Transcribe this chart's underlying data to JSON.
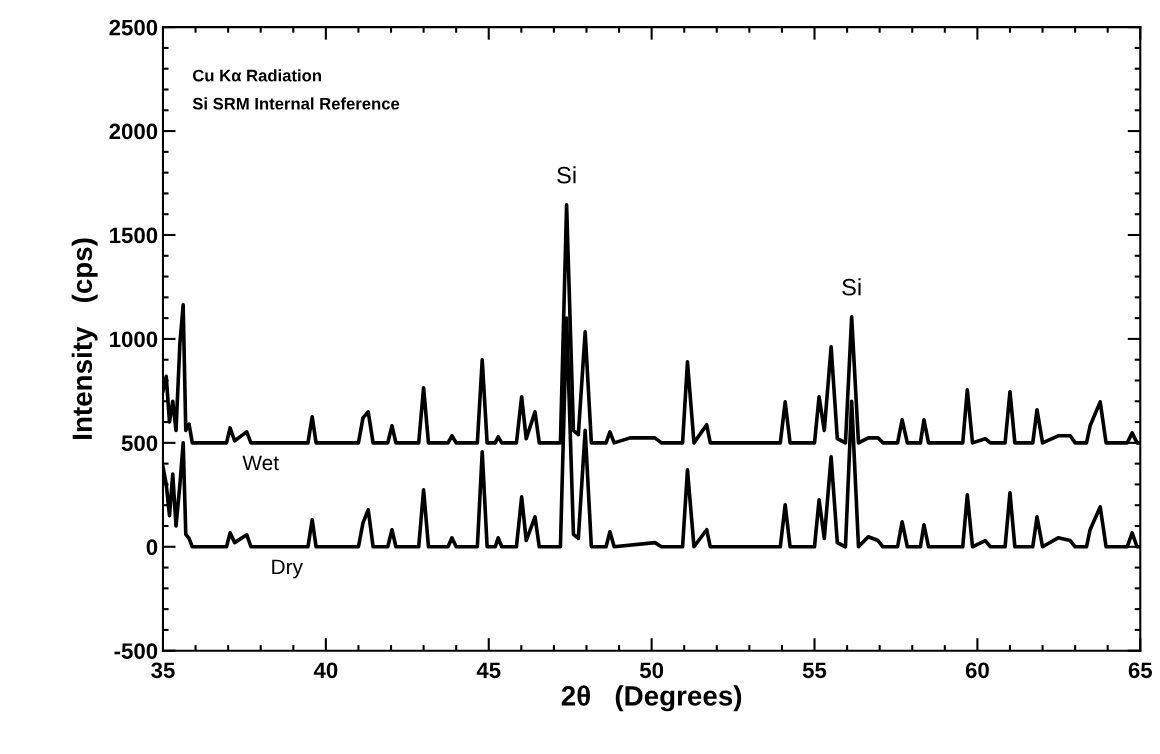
{
  "chart_data": {
    "type": "line",
    "xlabel": "2θ   (Degrees)",
    "ylabel": "Intensity   (cps)",
    "xlim": [
      35,
      65
    ],
    "xticks": [
      35,
      40,
      45,
      50,
      55,
      60,
      65
    ],
    "ylim": [
      -500,
      2500
    ],
    "yticks": [
      -500,
      0,
      500,
      1000,
      1500,
      2000,
      2500
    ],
    "grid": false,
    "legend": false,
    "marker": "none",
    "line_style": "solid",
    "annotations": [
      "Cu Kα Radiation",
      "Si SRM Internal Reference",
      {
        "text": "Si",
        "x": 47.39,
        "y": 1645
      },
      {
        "text": "Si",
        "x": 56.14,
        "y": 1106
      }
    ],
    "series": [
      {
        "name": "Wet",
        "color": "#000000",
        "x": [
          35.0,
          35.1,
          35.2,
          35.3,
          35.4,
          35.52,
          35.62,
          35.7,
          35.8,
          35.9,
          36.95,
          37.06,
          37.2,
          37.57,
          37.7,
          39.45,
          39.58,
          39.7,
          41.0,
          41.14,
          41.3,
          41.45,
          41.9,
          42.03,
          42.15,
          42.85,
          43.0,
          43.15,
          43.75,
          43.87,
          44.0,
          44.65,
          44.8,
          44.95,
          45.2,
          45.29,
          45.4,
          45.85,
          46.01,
          46.15,
          46.42,
          46.55,
          47.2,
          47.39,
          47.6,
          47.75,
          47.96,
          48.15,
          48.6,
          48.72,
          48.85,
          49.34,
          50.1,
          50.3,
          50.95,
          51.1,
          51.3,
          51.69,
          51.8,
          53.95,
          54.1,
          54.25,
          55.0,
          55.14,
          55.3,
          55.51,
          55.7,
          55.95,
          56.14,
          56.35,
          56.65,
          56.95,
          57.1,
          57.55,
          57.69,
          57.85,
          58.25,
          58.36,
          58.5,
          59.55,
          59.69,
          59.85,
          60.24,
          60.4,
          60.85,
          61.0,
          61.15,
          61.7,
          61.83,
          62.0,
          62.48,
          62.85,
          63.0,
          63.35,
          63.46,
          63.77,
          63.95,
          64.6,
          64.75,
          64.9,
          65.0
        ],
        "values": [
          750,
          820,
          600,
          700,
          560,
          980,
          1164,
          560,
          590,
          500,
          500,
          572,
          510,
          553,
          500,
          500,
          625,
          500,
          500,
          620,
          649,
          500,
          500,
          582,
          500,
          500,
          765,
          500,
          500,
          534,
          500,
          500,
          899,
          500,
          500,
          529,
          500,
          500,
          722,
          520,
          649,
          500,
          500,
          1645,
          560,
          540,
          1034,
          500,
          500,
          553,
          500,
          524,
          524,
          500,
          500,
          890,
          500,
          587,
          500,
          500,
          697,
          500,
          500,
          722,
          560,
          962,
          520,
          500,
          1106,
          500,
          524,
          524,
          500,
          500,
          611,
          500,
          500,
          611,
          500,
          500,
          755,
          500,
          520,
          500,
          500,
          746,
          500,
          500,
          659,
          500,
          534,
          534,
          500,
          500,
          582,
          697,
          500,
          500,
          548,
          500,
          500
        ]
      },
      {
        "name": "Dry",
        "color": "#000000",
        "x": [
          35.0,
          35.1,
          35.2,
          35.3,
          35.4,
          35.52,
          35.62,
          35.7,
          35.8,
          35.9,
          36.95,
          37.06,
          37.2,
          37.57,
          37.7,
          39.45,
          39.58,
          39.7,
          41.0,
          41.14,
          41.3,
          41.45,
          41.9,
          42.03,
          42.15,
          42.85,
          43.0,
          43.15,
          43.75,
          43.87,
          44.0,
          44.65,
          44.8,
          44.95,
          45.2,
          45.29,
          45.4,
          45.85,
          46.01,
          46.15,
          46.42,
          46.55,
          47.2,
          47.39,
          47.6,
          47.75,
          47.96,
          48.15,
          48.6,
          48.72,
          48.85,
          50.1,
          50.3,
          50.95,
          51.1,
          51.3,
          51.69,
          51.8,
          53.95,
          54.1,
          54.25,
          55.0,
          55.14,
          55.3,
          55.51,
          55.7,
          55.95,
          56.14,
          56.35,
          56.65,
          56.95,
          57.1,
          57.55,
          57.69,
          57.85,
          58.25,
          58.36,
          58.5,
          59.55,
          59.69,
          59.85,
          60.24,
          60.4,
          60.85,
          61.0,
          61.15,
          61.7,
          61.83,
          62.0,
          62.48,
          62.85,
          63.0,
          63.35,
          63.46,
          63.77,
          63.95,
          64.6,
          64.75,
          64.9,
          65.0
        ],
        "values": [
          385,
          300,
          150,
          350,
          100,
          300,
          500,
          60,
          40,
          0,
          0,
          67,
          20,
          58,
          0,
          0,
          130,
          0,
          0,
          115,
          178,
          0,
          0,
          82,
          0,
          0,
          274,
          0,
          0,
          43,
          0,
          0,
          457,
          0,
          0,
          43,
          0,
          0,
          240,
          30,
          144,
          0,
          0,
          1100,
          60,
          40,
          560,
          0,
          0,
          72,
          0,
          20,
          0,
          0,
          370,
          0,
          82,
          0,
          0,
          202,
          0,
          0,
          226,
          40,
          433,
          20,
          0,
          700,
          0,
          48,
          30,
          0,
          0,
          120,
          0,
          0,
          106,
          0,
          0,
          250,
          0,
          30,
          0,
          0,
          260,
          0,
          0,
          144,
          0,
          43,
          30,
          0,
          0,
          82,
          192,
          0,
          0,
          67,
          0,
          0
        ]
      }
    ]
  }
}
